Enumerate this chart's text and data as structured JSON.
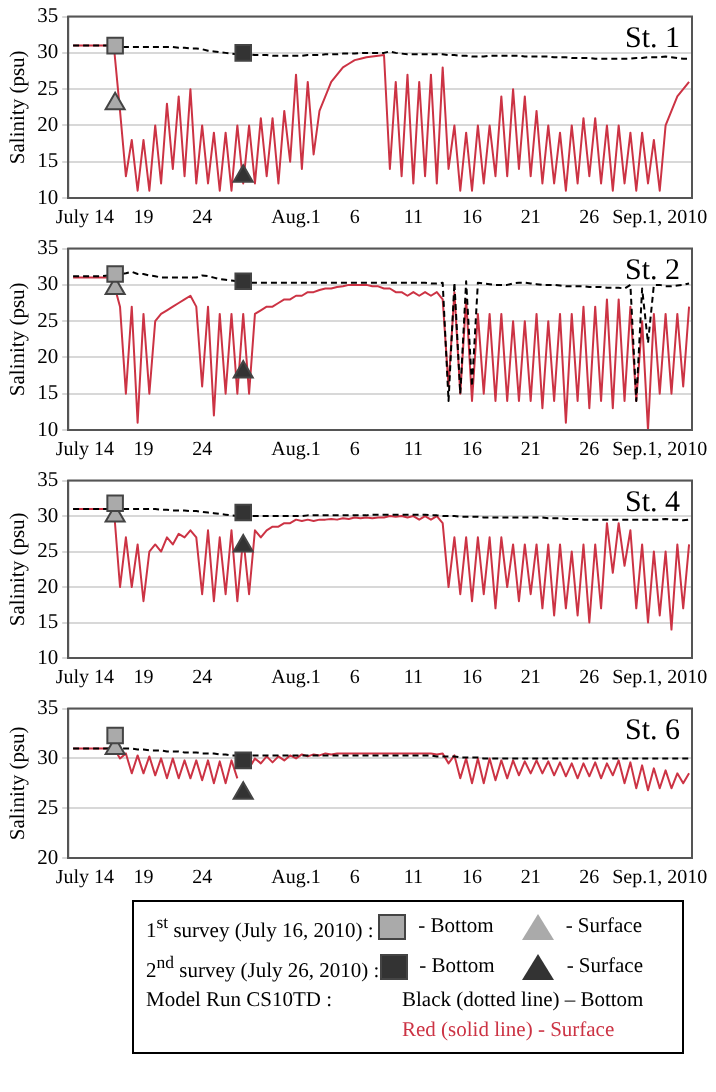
{
  "chart_data": [
    {
      "type": "line",
      "title": "St. 1",
      "ylabel": "Salinity (psu)",
      "grid": "y",
      "x": [
        "2010-07-13",
        "2010-07-13T12:00",
        "2010-07-14",
        "2010-07-14T12:00",
        "2010-07-15",
        "2010-07-15T12:00",
        "2010-07-16",
        "2010-07-16T12:00",
        "2010-07-17",
        "2010-07-17T12:00",
        "2010-07-18",
        "2010-07-18T12:00",
        "2010-07-19",
        "2010-07-19T12:00",
        "2010-07-20",
        "2010-07-20T12:00",
        "2010-07-21",
        "2010-07-21T12:00",
        "2010-07-22",
        "2010-07-22T12:00",
        "2010-07-23",
        "2010-07-23T12:00",
        "2010-07-24",
        "2010-07-24T12:00",
        "2010-07-25",
        "2010-07-25T12:00",
        "2010-07-26",
        "2010-07-26T12:00",
        "2010-07-27",
        "2010-07-27T12:00",
        "2010-07-28",
        "2010-07-28T12:00",
        "2010-07-29",
        "2010-07-29T12:00",
        "2010-07-30",
        "2010-07-30T12:00",
        "2010-07-31",
        "2010-07-31T12:00",
        "2010-08-01",
        "2010-08-01T12:00",
        "2010-08-02",
        "2010-08-02T12:00",
        "2010-08-03",
        "2010-08-03T12:00",
        "2010-08-04",
        "2010-08-04T12:00",
        "2010-08-05",
        "2010-08-05T12:00",
        "2010-08-06",
        "2010-08-06T12:00",
        "2010-08-07",
        "2010-08-07T12:00",
        "2010-08-08",
        "2010-08-08T12:00",
        "2010-08-09",
        "2010-08-09T12:00",
        "2010-08-10",
        "2010-08-10T12:00",
        "2010-08-11",
        "2010-08-11T12:00",
        "2010-08-12",
        "2010-08-12T12:00",
        "2010-08-13",
        "2010-08-13T12:00",
        "2010-08-14",
        "2010-08-14T12:00",
        "2010-08-15",
        "2010-08-15T12:00",
        "2010-08-16",
        "2010-08-16T12:00",
        "2010-08-17",
        "2010-08-17T12:00",
        "2010-08-18",
        "2010-08-18T12:00",
        "2010-08-19",
        "2010-08-19T12:00",
        "2010-08-20",
        "2010-08-20T12:00",
        "2010-08-21",
        "2010-08-21T12:00",
        "2010-08-22",
        "2010-08-22T12:00",
        "2010-08-23",
        "2010-08-23T12:00",
        "2010-08-24",
        "2010-08-24T12:00",
        "2010-08-25",
        "2010-08-25T12:00",
        "2010-08-26",
        "2010-08-26T12:00",
        "2010-08-27",
        "2010-08-27T12:00",
        "2010-08-28",
        "2010-08-28T12:00",
        "2010-08-29",
        "2010-08-29T12:00",
        "2010-08-30",
        "2010-08-30T12:00",
        "2010-08-31",
        "2010-08-31T12:00",
        "2010-09-01",
        "2010-09-01T12:00",
        "2010-09-02",
        "2010-09-02T12:00",
        "2010-09-03",
        "2010-09-03T12:00"
      ],
      "xlim": [
        "2010-07-12T14:00",
        "2010-09-03T18:00"
      ],
      "xticks": [
        {
          "value": "2010-07-14",
          "label": "July 14"
        },
        {
          "value": "2010-07-19",
          "label": "19"
        },
        {
          "value": "2010-07-24",
          "label": "24"
        },
        {
          "value": "2010-08-01",
          "label": "Aug.1"
        },
        {
          "value": "2010-08-06",
          "label": "6"
        },
        {
          "value": "2010-08-11",
          "label": "11"
        },
        {
          "value": "2010-08-16",
          "label": "16"
        },
        {
          "value": "2010-08-21",
          "label": "21"
        },
        {
          "value": "2010-08-26",
          "label": "26"
        },
        {
          "value": "2010-09-01",
          "label": "Sep.1, 2010"
        }
      ],
      "ylim": [
        10,
        35
      ],
      "yticks": [
        10,
        15,
        20,
        25,
        30,
        35
      ],
      "series": [
        {
          "color": "#000000",
          "line_style": "dashed",
          "values": [
            31,
            31,
            31,
            31,
            31,
            31,
            31,
            31,
            30.8,
            30.8,
            30.8,
            30.8,
            30.8,
            30.8,
            30.8,
            30.8,
            30.8,
            30.8,
            30.7,
            30.7,
            30.6,
            30.6,
            30.5,
            30.3,
            30.2,
            30.1,
            30,
            29.9,
            29.8,
            29.8,
            29.8,
            29.7,
            29.7,
            29.7,
            29.6,
            29.6,
            29.6,
            29.6,
            29.6,
            29.6,
            29.7,
            29.7,
            29.7,
            29.8,
            29.8,
            29.8,
            29.9,
            29.9,
            29.9,
            30,
            30,
            30,
            30,
            30,
            30.2,
            30,
            29.9,
            29.8,
            29.8,
            29.8,
            29.8,
            29.8,
            29.8,
            29.8,
            29.7,
            29.7,
            29.6,
            29.6,
            29.5,
            29.5,
            29.5,
            29.6,
            29.6,
            29.6,
            29.6,
            29.6,
            29.6,
            29.5,
            29.5,
            29.5,
            29.5,
            29.5,
            29.4,
            29.4,
            29.4,
            29.3,
            29.3,
            29.3,
            29.3,
            29.2,
            29.2,
            29.2,
            29.2,
            29.2,
            29.2,
            29.2,
            29.3,
            29.3,
            29.4,
            29.4,
            29.4,
            29.5,
            29.4,
            29.3,
            29.2,
            29.2
          ]
        },
        {
          "color": "#cc3344",
          "line_style": "solid",
          "values": [
            31,
            31,
            31,
            31,
            31,
            31,
            31,
            30.5,
            22,
            13,
            18,
            11,
            18,
            11,
            20,
            12,
            23,
            14,
            24,
            13,
            25,
            12,
            20,
            12,
            19,
            11,
            19,
            11,
            20,
            12,
            20,
            12,
            21,
            13,
            21,
            12,
            22,
            15,
            27,
            14,
            26,
            16,
            22,
            24,
            26,
            27,
            28,
            28.5,
            29,
            29.2,
            29.4,
            29.5,
            29.6,
            29.7,
            14,
            26,
            13,
            27,
            12,
            26,
            13,
            27,
            12,
            28,
            14,
            20,
            11,
            19,
            11,
            20,
            12,
            20,
            13,
            24,
            13,
            25,
            14,
            24,
            13,
            22,
            12,
            20,
            12,
            19,
            11,
            20,
            12,
            21,
            13,
            21,
            12,
            20,
            11,
            20,
            12,
            19,
            11,
            19,
            12,
            18,
            11,
            20,
            22,
            24,
            25,
            26
          ]
        },
        {
          "type": "scatter",
          "marker": "square",
          "color": "#aaaaaa",
          "x": [
            "2010-07-16T14:00"
          ],
          "values": [
            31
          ]
        },
        {
          "type": "scatter",
          "marker": "triangle",
          "color": "#aaaaaa",
          "x": [
            "2010-07-16T14:00"
          ],
          "values": [
            23
          ]
        },
        {
          "type": "scatter",
          "marker": "square",
          "color": "#333333",
          "x": [
            "2010-07-27T12:00"
          ],
          "values": [
            30
          ]
        },
        {
          "type": "scatter",
          "marker": "triangle",
          "color": "#333333",
          "x": [
            "2010-07-27T12:00"
          ],
          "values": [
            13
          ]
        }
      ]
    },
    {
      "type": "line",
      "title": "St. 2",
      "ylabel": "Salinity (psu)",
      "grid": "y",
      "x": [
        "2010-07-13",
        "2010-07-13T12:00",
        "2010-07-14",
        "2010-07-14T12:00",
        "2010-07-15",
        "2010-07-15T12:00",
        "2010-07-16",
        "2010-07-16T12:00",
        "2010-07-17",
        "2010-07-17T12:00",
        "2010-07-18",
        "2010-07-18T12:00",
        "2010-07-19",
        "2010-07-19T12:00",
        "2010-07-20",
        "2010-07-20T12:00",
        "2010-07-21",
        "2010-07-21T12:00",
        "2010-07-22",
        "2010-07-22T12:00",
        "2010-07-23",
        "2010-07-23T12:00",
        "2010-07-24",
        "2010-07-24T12:00",
        "2010-07-25",
        "2010-07-25T12:00",
        "2010-07-26",
        "2010-07-26T12:00",
        "2010-07-27",
        "2010-07-27T12:00",
        "2010-07-28",
        "2010-07-28T12:00",
        "2010-07-29",
        "2010-07-29T12:00",
        "2010-07-30",
        "2010-07-30T12:00",
        "2010-07-31",
        "2010-07-31T12:00",
        "2010-08-01",
        "2010-08-01T12:00",
        "2010-08-02",
        "2010-08-02T12:00",
        "2010-08-03",
        "2010-08-03T12:00",
        "2010-08-04",
        "2010-08-04T12:00",
        "2010-08-05",
        "2010-08-05T12:00",
        "2010-08-06",
        "2010-08-06T12:00",
        "2010-08-07",
        "2010-08-07T12:00",
        "2010-08-08",
        "2010-08-08T12:00",
        "2010-08-09",
        "2010-08-09T12:00",
        "2010-08-10",
        "2010-08-10T12:00",
        "2010-08-11",
        "2010-08-11T12:00",
        "2010-08-12",
        "2010-08-12T12:00",
        "2010-08-13",
        "2010-08-13T12:00",
        "2010-08-14",
        "2010-08-14T12:00",
        "2010-08-15",
        "2010-08-15T12:00",
        "2010-08-16",
        "2010-08-16T12:00",
        "2010-08-17",
        "2010-08-17T12:00",
        "2010-08-18",
        "2010-08-18T12:00",
        "2010-08-19",
        "2010-08-19T12:00",
        "2010-08-20",
        "2010-08-20T12:00",
        "2010-08-21",
        "2010-08-21T12:00",
        "2010-08-22",
        "2010-08-22T12:00",
        "2010-08-23",
        "2010-08-23T12:00",
        "2010-08-24",
        "2010-08-24T12:00",
        "2010-08-25",
        "2010-08-25T12:00",
        "2010-08-26",
        "2010-08-26T12:00",
        "2010-08-27",
        "2010-08-27T12:00",
        "2010-08-28",
        "2010-08-28T12:00",
        "2010-08-29",
        "2010-08-29T12:00",
        "2010-08-30",
        "2010-08-30T12:00",
        "2010-08-31",
        "2010-08-31T12:00",
        "2010-09-01",
        "2010-09-01T12:00",
        "2010-09-02",
        "2010-09-02T12:00",
        "2010-09-03",
        "2010-09-03T12:00"
      ],
      "xlim": [
        "2010-07-12T14:00",
        "2010-09-03T18:00"
      ],
      "xticks": [
        {
          "value": "2010-07-14",
          "label": "July 14"
        },
        {
          "value": "2010-07-19",
          "label": "19"
        },
        {
          "value": "2010-07-24",
          "label": "24"
        },
        {
          "value": "2010-08-01",
          "label": "Aug.1"
        },
        {
          "value": "2010-08-06",
          "label": "6"
        },
        {
          "value": "2010-08-11",
          "label": "11"
        },
        {
          "value": "2010-08-16",
          "label": "16"
        },
        {
          "value": "2010-08-21",
          "label": "21"
        },
        {
          "value": "2010-08-26",
          "label": "26"
        },
        {
          "value": "2010-09-01",
          "label": "Sep.1, 2010"
        }
      ],
      "ylim": [
        10,
        35
      ],
      "yticks": [
        10,
        15,
        20,
        25,
        30,
        35
      ],
      "series": [
        {
          "color": "#000000",
          "line_style": "dashed",
          "values": [
            31.2,
            31.2,
            31.2,
            31.2,
            31.2,
            31.2,
            31.3,
            31.4,
            31.5,
            31.6,
            31.8,
            31.5,
            31.5,
            31.3,
            31.2,
            31,
            31,
            31,
            31,
            31,
            31,
            31,
            31.3,
            31.2,
            31,
            30.8,
            30.7,
            30.6,
            30.5,
            30.4,
            30.3,
            30.3,
            30.3,
            30.3,
            30.3,
            30.3,
            30.3,
            30.3,
            30.3,
            30.3,
            30.3,
            30.3,
            30.3,
            30.3,
            30.3,
            30.3,
            30.3,
            30.3,
            30.3,
            30.3,
            30.3,
            30.3,
            30.3,
            30.3,
            30.3,
            30.3,
            30.3,
            30.3,
            30.3,
            30.3,
            30.3,
            30.2,
            30.2,
            30.3,
            14,
            30.3,
            15,
            30.5,
            16,
            30.3,
            30.2,
            30.1,
            30,
            30,
            30,
            30.2,
            30.3,
            30.3,
            30.2,
            30.1,
            30,
            30,
            30,
            29.9,
            29.8,
            29.8,
            29.8,
            29.8,
            29.7,
            29.7,
            29.7,
            29.6,
            29.6,
            29.6,
            29.5,
            30,
            14,
            29.5,
            22,
            30,
            30,
            29.8,
            29.8,
            29.9,
            30,
            30.2
          ]
        },
        {
          "color": "#cc3344",
          "line_style": "solid",
          "values": [
            31,
            31,
            31,
            31,
            31,
            31,
            31,
            30,
            27,
            15,
            27,
            11,
            26,
            15,
            25,
            26,
            26.5,
            27,
            27.5,
            28,
            28.5,
            27,
            16,
            27,
            12,
            26,
            15,
            26,
            15,
            26,
            15,
            26,
            26.5,
            27,
            27,
            27.5,
            28,
            28,
            28.5,
            28.5,
            29,
            29,
            29.3,
            29.5,
            29.5,
            29.7,
            29.8,
            30,
            30,
            30,
            30,
            29.8,
            29.8,
            29.5,
            29.5,
            29,
            29,
            28.5,
            29,
            28.5,
            29,
            28.5,
            29,
            28,
            16,
            29,
            15,
            28,
            14,
            26,
            15,
            26,
            14,
            26,
            14,
            25,
            14,
            25,
            14,
            26,
            13,
            25,
            14,
            26,
            11,
            26,
            14,
            27,
            13,
            27,
            14,
            28,
            13,
            28,
            14,
            27,
            14,
            25,
            10,
            26,
            15,
            26,
            15,
            26,
            16,
            27
          ]
        },
        {
          "type": "scatter",
          "marker": "square",
          "color": "#aaaaaa",
          "x": [
            "2010-07-16T14:00"
          ],
          "values": [
            31.5
          ]
        },
        {
          "type": "scatter",
          "marker": "triangle",
          "color": "#aaaaaa",
          "x": [
            "2010-07-16T14:00"
          ],
          "values": [
            29.5
          ]
        },
        {
          "type": "scatter",
          "marker": "square",
          "color": "#333333",
          "x": [
            "2010-07-27T12:00"
          ],
          "values": [
            30.5
          ]
        },
        {
          "type": "scatter",
          "marker": "triangle",
          "color": "#333333",
          "x": [
            "2010-07-27T12:00"
          ],
          "values": [
            18
          ]
        }
      ]
    },
    {
      "type": "line",
      "title": "St. 4",
      "ylabel": "Salinity (psu)",
      "grid": "y",
      "x": [
        "2010-07-13",
        "2010-07-13T12:00",
        "2010-07-14",
        "2010-07-14T12:00",
        "2010-07-15",
        "2010-07-15T12:00",
        "2010-07-16",
        "2010-07-16T12:00",
        "2010-07-17",
        "2010-07-17T12:00",
        "2010-07-18",
        "2010-07-18T12:00",
        "2010-07-19",
        "2010-07-19T12:00",
        "2010-07-20",
        "2010-07-20T12:00",
        "2010-07-21",
        "2010-07-21T12:00",
        "2010-07-22",
        "2010-07-22T12:00",
        "2010-07-23",
        "2010-07-23T12:00",
        "2010-07-24",
        "2010-07-24T12:00",
        "2010-07-25",
        "2010-07-25T12:00",
        "2010-07-26",
        "2010-07-26T12:00",
        "2010-07-27",
        "2010-07-27T12:00",
        "2010-07-28",
        "2010-07-28T12:00",
        "2010-07-29",
        "2010-07-29T12:00",
        "2010-07-30",
        "2010-07-30T12:00",
        "2010-07-31",
        "2010-07-31T12:00",
        "2010-08-01",
        "2010-08-01T12:00",
        "2010-08-02",
        "2010-08-02T12:00",
        "2010-08-03",
        "2010-08-03T12:00",
        "2010-08-04",
        "2010-08-04T12:00",
        "2010-08-05",
        "2010-08-05T12:00",
        "2010-08-06",
        "2010-08-06T12:00",
        "2010-08-07",
        "2010-08-07T12:00",
        "2010-08-08",
        "2010-08-08T12:00",
        "2010-08-09",
        "2010-08-09T12:00",
        "2010-08-10",
        "2010-08-10T12:00",
        "2010-08-11",
        "2010-08-11T12:00",
        "2010-08-12",
        "2010-08-12T12:00",
        "2010-08-13",
        "2010-08-13T12:00",
        "2010-08-14",
        "2010-08-14T12:00",
        "2010-08-15",
        "2010-08-15T12:00",
        "2010-08-16",
        "2010-08-16T12:00",
        "2010-08-17",
        "2010-08-17T12:00",
        "2010-08-18",
        "2010-08-18T12:00",
        "2010-08-19",
        "2010-08-19T12:00",
        "2010-08-20",
        "2010-08-20T12:00",
        "2010-08-21",
        "2010-08-21T12:00",
        "2010-08-22",
        "2010-08-22T12:00",
        "2010-08-23",
        "2010-08-23T12:00",
        "2010-08-24",
        "2010-08-24T12:00",
        "2010-08-25",
        "2010-08-25T12:00",
        "2010-08-26",
        "2010-08-26T12:00",
        "2010-08-27",
        "2010-08-27T12:00",
        "2010-08-28",
        "2010-08-28T12:00",
        "2010-08-29",
        "2010-08-29T12:00",
        "2010-08-30",
        "2010-08-30T12:00",
        "2010-08-31",
        "2010-08-31T12:00",
        "2010-09-01",
        "2010-09-01T12:00",
        "2010-09-02",
        "2010-09-02T12:00",
        "2010-09-03",
        "2010-09-03T12:00"
      ],
      "xlim": [
        "2010-07-12T14:00",
        "2010-09-03T18:00"
      ],
      "xticks": [
        {
          "value": "2010-07-14",
          "label": "July 14"
        },
        {
          "value": "2010-07-19",
          "label": "19"
        },
        {
          "value": "2010-07-24",
          "label": "24"
        },
        {
          "value": "2010-08-01",
          "label": "Aug.1"
        },
        {
          "value": "2010-08-06",
          "label": "6"
        },
        {
          "value": "2010-08-11",
          "label": "11"
        },
        {
          "value": "2010-08-16",
          "label": "16"
        },
        {
          "value": "2010-08-21",
          "label": "21"
        },
        {
          "value": "2010-08-26",
          "label": "26"
        },
        {
          "value": "2010-09-01",
          "label": "Sep.1, 2010"
        }
      ],
      "ylim": [
        10,
        35
      ],
      "yticks": [
        10,
        15,
        20,
        25,
        30,
        35
      ],
      "series": [
        {
          "color": "#000000",
          "line_style": "dashed",
          "values": [
            31,
            31,
            31,
            31,
            31,
            31,
            31,
            31,
            31,
            31,
            31,
            31,
            31,
            31,
            31,
            30.9,
            30.9,
            30.8,
            30.8,
            30.8,
            30.7,
            30.7,
            30.6,
            30.5,
            30.4,
            30.3,
            30.2,
            30.1,
            30,
            30,
            30,
            30,
            30,
            30,
            30,
            30,
            30,
            30,
            30,
            30,
            30.1,
            30.1,
            30.1,
            30.1,
            30.1,
            30.1,
            30.1,
            30.1,
            30.1,
            30.1,
            30.1,
            30.2,
            30.2,
            30.2,
            30.2,
            30.2,
            30.2,
            30.2,
            30.2,
            30.2,
            30.2,
            30.1,
            30.1,
            30,
            30,
            30,
            29.9,
            29.9,
            29.9,
            29.9,
            29.8,
            29.8,
            29.8,
            29.8,
            29.8,
            29.8,
            29.8,
            29.8,
            29.8,
            29.8,
            29.8,
            29.7,
            29.7,
            29.7,
            29.6,
            29.6,
            29.6,
            29.5,
            29.5,
            29.5,
            29.5,
            29.5,
            29.5,
            29.5,
            29.5,
            29.5,
            29.5,
            29.5,
            29.5,
            29.5,
            29.5,
            29.6,
            29.5,
            29.5,
            29.4,
            29.5
          ]
        },
        {
          "color": "#cc3344",
          "line_style": "solid",
          "values": [
            31,
            31,
            31,
            31,
            31,
            31,
            31,
            30.5,
            20,
            27,
            20,
            26,
            18,
            25,
            26,
            25,
            27,
            26,
            27.5,
            27,
            28,
            27,
            19,
            28,
            18,
            27,
            19,
            28,
            18,
            27,
            19,
            28,
            27,
            28,
            28.5,
            28.5,
            29,
            29,
            29.5,
            29.3,
            29.5,
            29.3,
            29.5,
            29.5,
            29.6,
            29.5,
            29.7,
            29.6,
            29.8,
            29.7,
            29.8,
            29.7,
            29.8,
            29.8,
            30,
            29.9,
            30,
            29.8,
            30,
            29.5,
            30,
            29.5,
            30,
            29,
            20,
            27,
            19,
            27,
            18,
            27,
            19,
            27,
            17,
            27,
            20,
            26,
            18,
            26,
            19,
            26,
            17,
            26,
            16,
            26,
            17,
            25,
            16,
            26,
            15,
            26,
            17,
            29,
            22,
            29,
            23,
            28,
            17,
            26,
            15,
            25,
            16,
            25,
            14,
            26,
            17,
            26
          ]
        },
        {
          "type": "scatter",
          "marker": "square",
          "color": "#aaaaaa",
          "x": [
            "2010-07-16T14:00"
          ],
          "values": [
            31.8
          ]
        },
        {
          "type": "scatter",
          "marker": "triangle",
          "color": "#aaaaaa",
          "x": [
            "2010-07-16T14:00"
          ],
          "values": [
            30
          ]
        },
        {
          "type": "scatter",
          "marker": "square",
          "color": "#333333",
          "x": [
            "2010-07-27T12:00"
          ],
          "values": [
            30.5
          ]
        },
        {
          "type": "scatter",
          "marker": "triangle",
          "color": "#333333",
          "x": [
            "2010-07-27T12:00"
          ],
          "values": [
            25.8
          ]
        }
      ]
    },
    {
      "type": "line",
      "title": "St. 6",
      "ylabel": "Salinity (psu)",
      "grid": "y",
      "legend": "bottom",
      "annotations": [
        "1$^{st}$ survey  (July 16, 2010) :",
        "2$^{nd}$ survey  (July 26, 2010) :",
        "Model Run CS10TD :"
      ],
      "x": [
        "2010-07-13",
        "2010-07-13T12:00",
        "2010-07-14",
        "2010-07-14T12:00",
        "2010-07-15",
        "2010-07-15T12:00",
        "2010-07-16",
        "2010-07-16T12:00",
        "2010-07-17",
        "2010-07-17T12:00",
        "2010-07-18",
        "2010-07-18T12:00",
        "2010-07-19",
        "2010-07-19T12:00",
        "2010-07-20",
        "2010-07-20T12:00",
        "2010-07-21",
        "2010-07-21T12:00",
        "2010-07-22",
        "2010-07-22T12:00",
        "2010-07-23",
        "2010-07-23T12:00",
        "2010-07-24",
        "2010-07-24T12:00",
        "2010-07-25",
        "2010-07-25T12:00",
        "2010-07-26",
        "2010-07-26T12:00",
        "2010-07-27",
        "2010-07-27T12:00",
        "2010-07-28",
        "2010-07-28T12:00",
        "2010-07-29",
        "2010-07-29T12:00",
        "2010-07-30",
        "2010-07-30T12:00",
        "2010-07-31",
        "2010-07-31T12:00",
        "2010-08-01",
        "2010-08-01T12:00",
        "2010-08-02",
        "2010-08-02T12:00",
        "2010-08-03",
        "2010-08-03T12:00",
        "2010-08-04",
        "2010-08-04T12:00",
        "2010-08-05",
        "2010-08-05T12:00",
        "2010-08-06",
        "2010-08-06T12:00",
        "2010-08-07",
        "2010-08-07T12:00",
        "2010-08-08",
        "2010-08-08T12:00",
        "2010-08-09",
        "2010-08-09T12:00",
        "2010-08-10",
        "2010-08-10T12:00",
        "2010-08-11",
        "2010-08-11T12:00",
        "2010-08-12",
        "2010-08-12T12:00",
        "2010-08-13",
        "2010-08-13T12:00",
        "2010-08-14",
        "2010-08-14T12:00",
        "2010-08-15",
        "2010-08-15T12:00",
        "2010-08-16",
        "2010-08-16T12:00",
        "2010-08-17",
        "2010-08-17T12:00",
        "2010-08-18",
        "2010-08-18T12:00",
        "2010-08-19",
        "2010-08-19T12:00",
        "2010-08-20",
        "2010-08-20T12:00",
        "2010-08-21",
        "2010-08-21T12:00",
        "2010-08-22",
        "2010-08-22T12:00",
        "2010-08-23",
        "2010-08-23T12:00",
        "2010-08-24",
        "2010-08-24T12:00",
        "2010-08-25",
        "2010-08-25T12:00",
        "2010-08-26",
        "2010-08-26T12:00",
        "2010-08-27",
        "2010-08-27T12:00",
        "2010-08-28",
        "2010-08-28T12:00",
        "2010-08-29",
        "2010-08-29T12:00",
        "2010-08-30",
        "2010-08-30T12:00",
        "2010-08-31",
        "2010-08-31T12:00",
        "2010-09-01",
        "2010-09-01T12:00",
        "2010-09-02",
        "2010-09-02T12:00",
        "2010-09-03",
        "2010-09-03T12:00"
      ],
      "xlim": [
        "2010-07-12T14:00",
        "2010-09-03T18:00"
      ],
      "xticks": [
        {
          "value": "2010-07-14",
          "label": "July 14"
        },
        {
          "value": "2010-07-19",
          "label": "19"
        },
        {
          "value": "2010-07-24",
          "label": "24"
        },
        {
          "value": "2010-08-01",
          "label": "Aug.1"
        },
        {
          "value": "2010-08-06",
          "label": "6"
        },
        {
          "value": "2010-08-11",
          "label": "11"
        },
        {
          "value": "2010-08-16",
          "label": "16"
        },
        {
          "value": "2010-08-21",
          "label": "21"
        },
        {
          "value": "2010-08-26",
          "label": "26"
        },
        {
          "value": "2010-09-01",
          "label": "Sep.1, 2010"
        }
      ],
      "ylim": [
        20,
        35
      ],
      "yticks": [
        20,
        25,
        30,
        35
      ],
      "series": [
        {
          "name": "Black (dotted line) – Bottom",
          "color": "#000000",
          "line_style": "dashed",
          "values": [
            31,
            31,
            31,
            31,
            31,
            31,
            31,
            31,
            31,
            31,
            31,
            30.9,
            30.9,
            30.8,
            30.8,
            30.8,
            30.7,
            30.7,
            30.7,
            30.6,
            30.6,
            30.6,
            30.5,
            30.5,
            30.5,
            30.4,
            30.4,
            30.3,
            30.3,
            30.3,
            30.3,
            30.3,
            30.3,
            30.3,
            30.3,
            30.3,
            30.3,
            30.3,
            30.3,
            30.3,
            30.3,
            30.3,
            30.3,
            30.3,
            30.3,
            30.3,
            30.3,
            30.3,
            30.3,
            30.3,
            30.3,
            30.3,
            30.3,
            30.3,
            30.3,
            30.3,
            30.3,
            30.3,
            30.3,
            30.3,
            30.3,
            30.3,
            30.2,
            30.2,
            30.2,
            30.2,
            30.1,
            30.1,
            30.1,
            30.1,
            30,
            30,
            30,
            30,
            30,
            30,
            30,
            30,
            30,
            30,
            30,
            30,
            30,
            30,
            30,
            30,
            30,
            30,
            30,
            30,
            30,
            30,
            30,
            30,
            30,
            30,
            30,
            30,
            30,
            30,
            30,
            30,
            30,
            30,
            30,
            30
          ]
        },
        {
          "name": "Red (solid line) - Surface",
          "color": "#cc3344",
          "line_style": "solid",
          "values": [
            31,
            31,
            31,
            31,
            31,
            31,
            31,
            31,
            30,
            30.5,
            28.5,
            30.3,
            28.5,
            30.2,
            28.3,
            30,
            28,
            30,
            28,
            29.8,
            28,
            29.8,
            27.8,
            29.8,
            27.5,
            29.7,
            27.5,
            29.8,
            28,
            null,
            29,
            30,
            29.5,
            30.2,
            29.6,
            30.2,
            29.8,
            30.3,
            30,
            30.4,
            30.2,
            30.4,
            30.3,
            30.5,
            30.4,
            30.5,
            30.5,
            30.5,
            30.5,
            30.5,
            30.5,
            30.5,
            30.5,
            30.5,
            30.5,
            30.5,
            30.5,
            30.5,
            30.5,
            30.5,
            30.5,
            30.5,
            30.4,
            30.5,
            29.5,
            30.3,
            28,
            30,
            27.5,
            30,
            27.5,
            30,
            27.8,
            29.8,
            28,
            29.8,
            28.3,
            29.7,
            28.5,
            29.8,
            28.5,
            29.7,
            28.3,
            29.6,
            28.2,
            29.5,
            28,
            29.5,
            28.2,
            29.6,
            28,
            29.5,
            28.3,
            29.8,
            27.5,
            29.6,
            27,
            29.3,
            26.8,
            29,
            27,
            28.8,
            27,
            28.5,
            27.5,
            28.5
          ]
        },
        {
          "name": "- Bottom",
          "type": "scatter",
          "marker": "square",
          "color": "#aaaaaa",
          "x": [
            "2010-07-16T14:00"
          ],
          "values": [
            32.3
          ]
        },
        {
          "name": "- Surface",
          "type": "scatter",
          "marker": "triangle",
          "color": "#aaaaaa",
          "x": [
            "2010-07-16T14:00"
          ],
          "values": [
            31
          ]
        },
        {
          "name": "- Bottom",
          "type": "scatter",
          "marker": "square",
          "color": "#333333",
          "x": [
            "2010-07-27T12:00"
          ],
          "values": [
            29.8
          ]
        },
        {
          "name": "- Surface",
          "type": "scatter",
          "marker": "triangle",
          "color": "#333333",
          "x": [
            "2010-07-27T12:00"
          ],
          "values": [
            26.5
          ]
        }
      ]
    }
  ]
}
